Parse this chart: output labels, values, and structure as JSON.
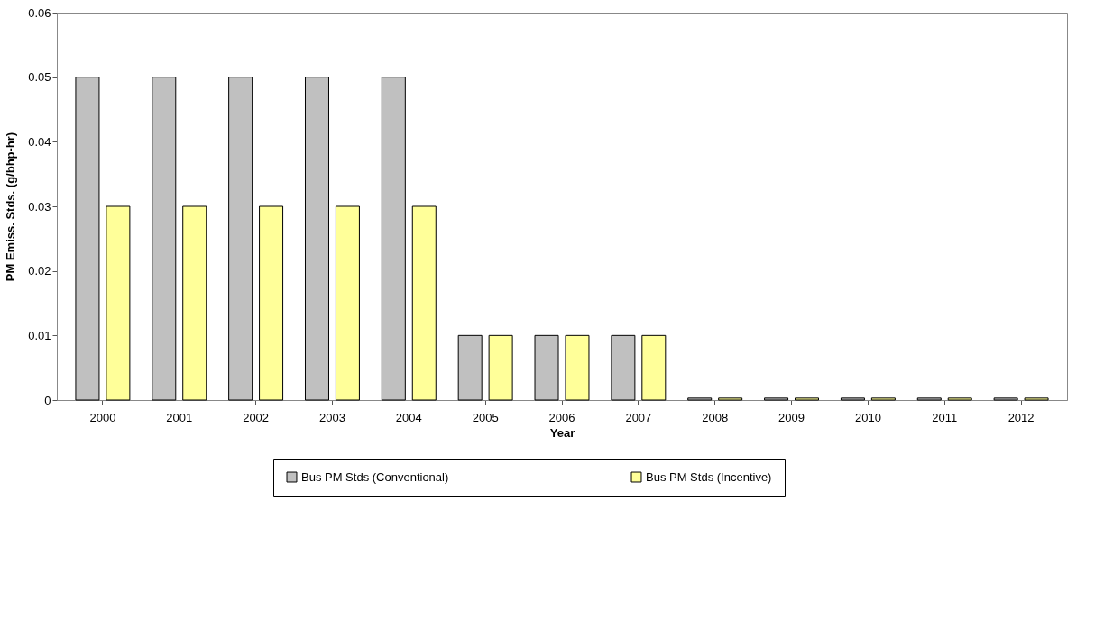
{
  "chart_data": {
    "type": "bar",
    "xlabel": "Year",
    "ylabel": "PM Emiss. Stds. (g/bhp-hr)",
    "categories": [
      "2000",
      "2001",
      "2002",
      "2003",
      "2004",
      "2005",
      "2006",
      "2007",
      "2008",
      "2009",
      "2010",
      "2011",
      "2012"
    ],
    "series": [
      {
        "name": "Bus PM Stds (Conventional)",
        "color": "#c0c0c0",
        "values": [
          0.05,
          0.05,
          0.05,
          0.05,
          0.05,
          0.01,
          0.01,
          0.01,
          0.0003,
          0.0003,
          0.0003,
          0.0003,
          0.0003
        ]
      },
      {
        "name": "Bus PM Stds (Incentive)",
        "color": "#ffff99",
        "values": [
          0.03,
          0.03,
          0.03,
          0.03,
          0.03,
          0.01,
          0.01,
          0.01,
          0.0003,
          0.0003,
          0.0003,
          0.0003,
          0.0003
        ]
      }
    ],
    "ylim": [
      0,
      0.06
    ],
    "yticks": [
      0,
      0.01,
      0.02,
      0.03,
      0.04,
      0.05,
      0.06
    ],
    "grid": false,
    "legend": "bottom"
  }
}
